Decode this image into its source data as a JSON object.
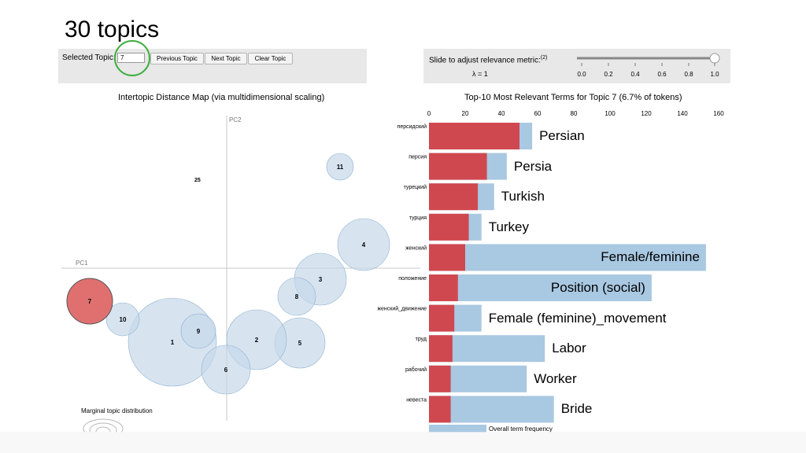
{
  "slide_title": "30 topics",
  "topic_panel": {
    "selected_label": "Selected Topic:",
    "selected_value": "7",
    "prev_label": "Previous Topic",
    "next_label": "Next Topic",
    "clear_label": "Clear Topic"
  },
  "relevance": {
    "label": "Slide to adjust relevance metric:",
    "footnote": "(2)",
    "lambda_text": "λ = 1",
    "ticks": [
      "0.0",
      "0.2",
      "0.4",
      "0.6",
      "0.8",
      "1.0"
    ],
    "value": 1.0
  },
  "map": {
    "title": "Intertopic Distance Map (via multidimensional scaling)",
    "pc1": "PC1",
    "pc2": "PC2",
    "marginal_label": "Marginal topic distribution",
    "overlap_label": "25",
    "topics": [
      "1",
      "2",
      "3",
      "4",
      "5",
      "6",
      "7",
      "8",
      "9",
      "10",
      "11"
    ],
    "selected_color": "#e07070",
    "bubble_color": "#c6d8ea"
  },
  "bars": {
    "title": "Top-10 Most Relevant Terms for Topic 7 (6.7% of tokens)",
    "axis_ticks": [
      "0",
      "20",
      "40",
      "60",
      "80",
      "100",
      "120",
      "140",
      "160"
    ],
    "legend_label": "Overall term frequency",
    "overall_color": "#a9c8e2",
    "topic_color": "#d0484f"
  },
  "chart_data": {
    "type": "bar",
    "title": "Top-10 Most Relevant Terms for Topic 7 (6.7% of tokens)",
    "categories": [
      "персидский",
      "персия",
      "турецкий",
      "турция",
      "женский",
      "положение",
      "женский_движение",
      "труд",
      "рабочий",
      "невеста"
    ],
    "series": [
      {
        "name": "Overall term frequency",
        "values": [
          57,
          43,
          36,
          29,
          153,
          123,
          29,
          64,
          54,
          69
        ]
      },
      {
        "values": [
          50,
          32,
          27,
          22,
          20,
          16,
          14,
          13,
          12,
          12
        ]
      }
    ],
    "xlim": [
      0,
      160
    ],
    "annotations": [
      "Persian",
      "Persia",
      "Turkish",
      "Turkey",
      "Female/feminine",
      "Position (social)",
      "Female (feminine)_movement",
      "Labor",
      "Worker",
      "Bride"
    ]
  }
}
